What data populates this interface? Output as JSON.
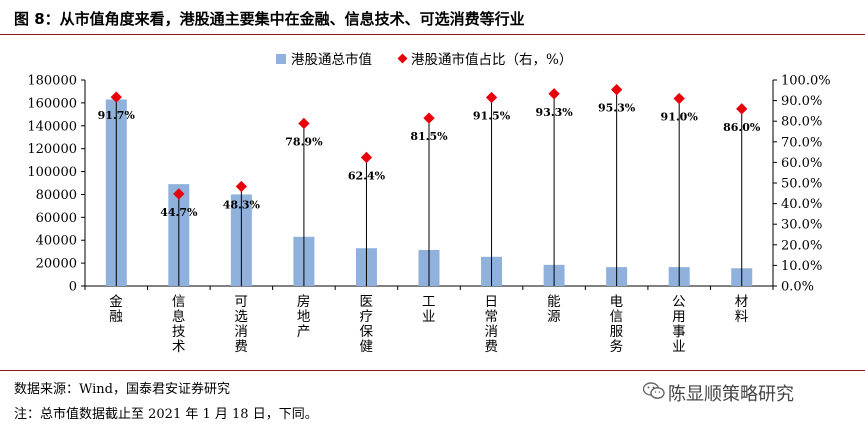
{
  "figure_title": "图 8：从市值角度来看，港股通主要集中在金融、信息技术、可选消费等行业",
  "footer": {
    "source": "数据来源：Wind，国泰君安证券研究",
    "note": "注：总市值数据截止至 2021 年 1 月 18 日，下同。",
    "brand": "陈显顺策略研究"
  },
  "colors": {
    "bar": "#8fb1dc",
    "marker": "#e8000b",
    "rule": "#8b1a1a"
  },
  "chart_data": {
    "type": "bar",
    "categories": [
      "金融",
      "信息技术",
      "可选消费",
      "房地产",
      "医疗保健",
      "工业",
      "日常消费",
      "能源",
      "电信服务",
      "公用事业",
      "材料"
    ],
    "series": [
      {
        "name": "港股通总市值",
        "type": "bar",
        "axis": "left",
        "values": [
          163000,
          89000,
          80000,
          43000,
          33000,
          31500,
          25500,
          18500,
          16500,
          16500,
          15500
        ]
      },
      {
        "name": "港股通市值占比（右，%）",
        "type": "scatter",
        "axis": "right",
        "values": [
          91.7,
          44.7,
          48.3,
          78.9,
          62.4,
          81.5,
          91.5,
          93.3,
          95.3,
          91.0,
          86.0
        ],
        "labels": [
          "91.7%",
          "44.7%",
          "48.3%",
          "78.9%",
          "62.4%",
          "81.5%",
          "91.5%",
          "93.3%",
          "95.3%",
          "91.0%",
          "86.0%"
        ]
      }
    ],
    "y_left": {
      "range": [
        0,
        180000
      ],
      "ticks": [
        "0",
        "20000",
        "40000",
        "60000",
        "80000",
        "100000",
        "120000",
        "140000",
        "160000",
        "180000"
      ]
    },
    "y_right": {
      "range": [
        0,
        100
      ],
      "ticks": [
        "0.0%",
        "10.0%",
        "20.0%",
        "30.0%",
        "40.0%",
        "50.0%",
        "60.0%",
        "70.0%",
        "80.0%",
        "90.0%",
        "100.0%"
      ]
    },
    "legend_position": "top"
  }
}
